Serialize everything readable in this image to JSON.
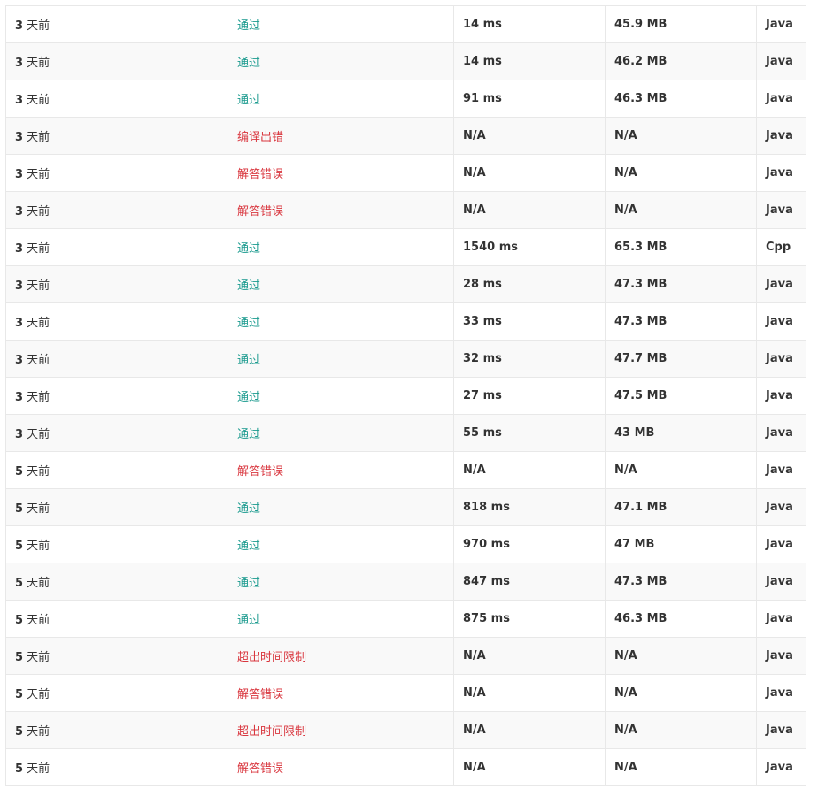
{
  "colors": {
    "accepted": "#1a9a8e",
    "error": "#d9363e",
    "row_alt": "#f9f9f9",
    "border": "#e8e8e8"
  },
  "submissions": [
    {
      "time_num": "3",
      "time_unit": " 天前",
      "status": "通过",
      "ok": true,
      "runtime": "14 ms",
      "memory": "45.9 MB",
      "lang": "Java"
    },
    {
      "time_num": "3",
      "time_unit": " 天前",
      "status": "通过",
      "ok": true,
      "runtime": "14 ms",
      "memory": "46.2 MB",
      "lang": "Java"
    },
    {
      "time_num": "3",
      "time_unit": " 天前",
      "status": "通过",
      "ok": true,
      "runtime": "91 ms",
      "memory": "46.3 MB",
      "lang": "Java"
    },
    {
      "time_num": "3",
      "time_unit": " 天前",
      "status": "编译出错",
      "ok": false,
      "runtime": "N/A",
      "memory": "N/A",
      "lang": "Java"
    },
    {
      "time_num": "3",
      "time_unit": " 天前",
      "status": "解答错误",
      "ok": false,
      "runtime": "N/A",
      "memory": "N/A",
      "lang": "Java"
    },
    {
      "time_num": "3",
      "time_unit": " 天前",
      "status": "解答错误",
      "ok": false,
      "runtime": "N/A",
      "memory": "N/A",
      "lang": "Java"
    },
    {
      "time_num": "3",
      "time_unit": " 天前",
      "status": "通过",
      "ok": true,
      "runtime": "1540 ms",
      "memory": "65.3 MB",
      "lang": "Cpp"
    },
    {
      "time_num": "3",
      "time_unit": " 天前",
      "status": "通过",
      "ok": true,
      "runtime": "28 ms",
      "memory": "47.3 MB",
      "lang": "Java"
    },
    {
      "time_num": "3",
      "time_unit": " 天前",
      "status": "通过",
      "ok": true,
      "runtime": "33 ms",
      "memory": "47.3 MB",
      "lang": "Java"
    },
    {
      "time_num": "3",
      "time_unit": " 天前",
      "status": "通过",
      "ok": true,
      "runtime": "32 ms",
      "memory": "47.7 MB",
      "lang": "Java"
    },
    {
      "time_num": "3",
      "time_unit": " 天前",
      "status": "通过",
      "ok": true,
      "runtime": "27 ms",
      "memory": "47.5 MB",
      "lang": "Java"
    },
    {
      "time_num": "3",
      "time_unit": " 天前",
      "status": "通过",
      "ok": true,
      "runtime": "55 ms",
      "memory": "43 MB",
      "lang": "Java"
    },
    {
      "time_num": "5",
      "time_unit": " 天前",
      "status": "解答错误",
      "ok": false,
      "runtime": "N/A",
      "memory": "N/A",
      "lang": "Java"
    },
    {
      "time_num": "5",
      "time_unit": " 天前",
      "status": "通过",
      "ok": true,
      "runtime": "818 ms",
      "memory": "47.1 MB",
      "lang": "Java"
    },
    {
      "time_num": "5",
      "time_unit": " 天前",
      "status": "通过",
      "ok": true,
      "runtime": "970 ms",
      "memory": "47 MB",
      "lang": "Java"
    },
    {
      "time_num": "5",
      "time_unit": " 天前",
      "status": "通过",
      "ok": true,
      "runtime": "847 ms",
      "memory": "47.3 MB",
      "lang": "Java"
    },
    {
      "time_num": "5",
      "time_unit": " 天前",
      "status": "通过",
      "ok": true,
      "runtime": "875 ms",
      "memory": "46.3 MB",
      "lang": "Java"
    },
    {
      "time_num": "5",
      "time_unit": " 天前",
      "status": "超出时间限制",
      "ok": false,
      "runtime": "N/A",
      "memory": "N/A",
      "lang": "Java"
    },
    {
      "time_num": "5",
      "time_unit": " 天前",
      "status": "解答错误",
      "ok": false,
      "runtime": "N/A",
      "memory": "N/A",
      "lang": "Java"
    },
    {
      "time_num": "5",
      "time_unit": " 天前",
      "status": "超出时间限制",
      "ok": false,
      "runtime": "N/A",
      "memory": "N/A",
      "lang": "Java"
    },
    {
      "time_num": "5",
      "time_unit": " 天前",
      "status": "解答错误",
      "ok": false,
      "runtime": "N/A",
      "memory": "N/A",
      "lang": "Java"
    }
  ]
}
